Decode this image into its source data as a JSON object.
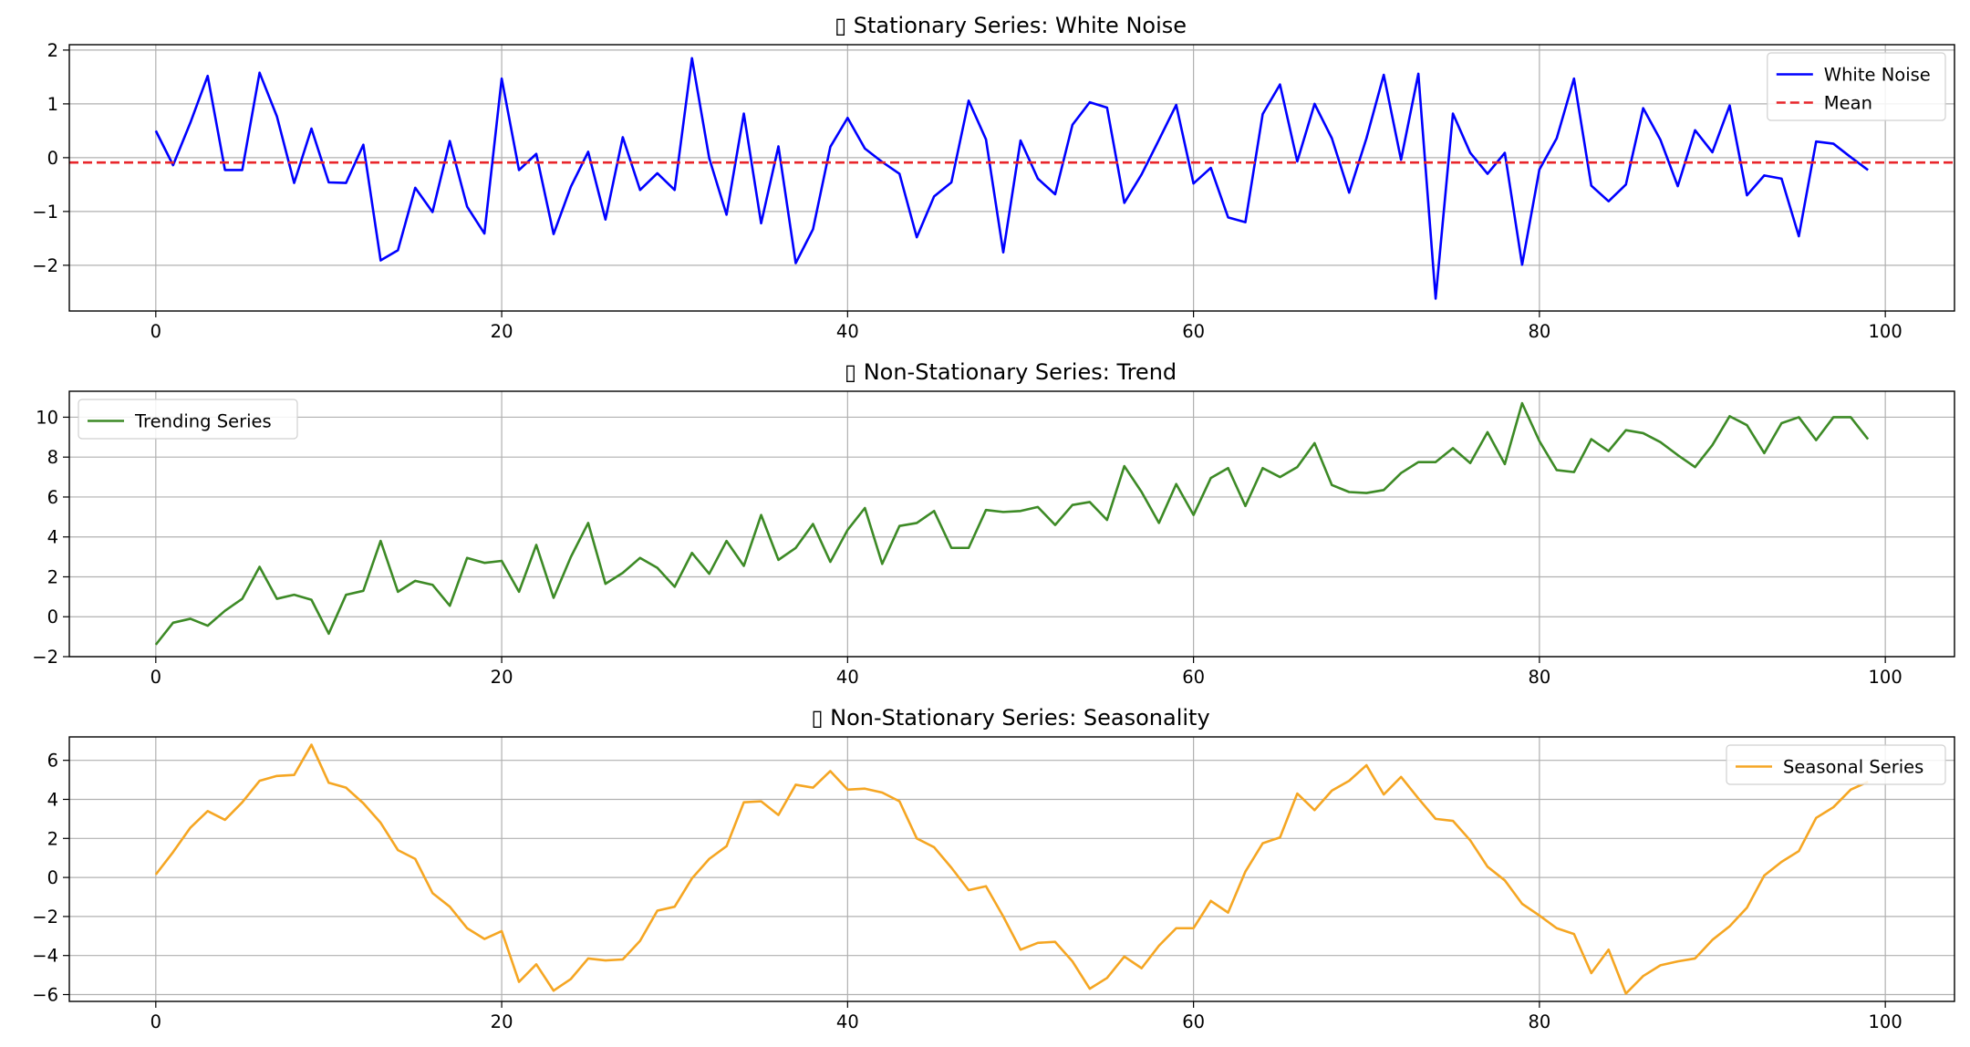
{
  "chart_data": [
    {
      "type": "line",
      "title": "▯ Stationary Series: White Noise",
      "xlabel": "",
      "ylabel": "",
      "xlim": [
        -5,
        104
      ],
      "ylim": [
        -2.85,
        2.1
      ],
      "xticks": [
        0,
        20,
        40,
        60,
        80,
        100
      ],
      "xtick_labels": [
        "0",
        "20",
        "40",
        "60",
        "80",
        "100"
      ],
      "yticks": [
        -2,
        -1,
        0,
        1,
        2
      ],
      "ytick_labels": [
        "−2",
        "−1",
        "0",
        "1",
        "2"
      ],
      "grid": true,
      "legend_position": "top-right",
      "series": [
        {
          "name": "White Noise",
          "color": "#0000ff",
          "style": "solid",
          "x": [
            0,
            1,
            2,
            3,
            4,
            5,
            6,
            7,
            8,
            9,
            10,
            11,
            12,
            13,
            14,
            15,
            16,
            17,
            18,
            19,
            20,
            21,
            22,
            23,
            24,
            25,
            26,
            27,
            28,
            29,
            30,
            31,
            32,
            33,
            34,
            35,
            36,
            37,
            38,
            39,
            40,
            41,
            42,
            43,
            44,
            45,
            46,
            47,
            48,
            49,
            50,
            51,
            52,
            53,
            54,
            55,
            56,
            57,
            58,
            59,
            60,
            61,
            62,
            63,
            64,
            65,
            66,
            67,
            68,
            69,
            70,
            71,
            72,
            73,
            74,
            75,
            76,
            77,
            78,
            79,
            80,
            81,
            82,
            83,
            84,
            85,
            86,
            87,
            88,
            89,
            90,
            91,
            92,
            93,
            94,
            95,
            96,
            97,
            98,
            99
          ],
          "y": [
            0.5,
            -0.14,
            0.65,
            1.52,
            -0.23,
            -0.23,
            1.58,
            0.77,
            -0.47,
            0.54,
            -0.46,
            -0.47,
            0.24,
            -1.91,
            -1.72,
            -0.56,
            -1.01,
            0.31,
            -0.91,
            -1.41,
            1.47,
            -0.23,
            0.07,
            -1.42,
            -0.54,
            0.11,
            -1.15,
            0.38,
            -0.6,
            -0.29,
            -0.6,
            1.85,
            -0.01,
            -1.06,
            0.82,
            -1.22,
            0.21,
            -1.96,
            -1.33,
            0.2,
            0.74,
            0.17,
            -0.08,
            -0.3,
            -1.48,
            -0.72,
            -0.46,
            1.06,
            0.34,
            -1.76,
            0.32,
            -0.39,
            -0.68,
            0.61,
            1.03,
            0.93,
            -0.84,
            -0.31,
            0.33,
            0.98,
            -0.48,
            -0.19,
            -1.11,
            -1.2,
            0.81,
            1.36,
            -0.07,
            1.0,
            0.36,
            -0.65,
            0.36,
            1.54,
            -0.04,
            1.56,
            -2.62,
            0.82,
            0.09,
            -0.3,
            0.09,
            -1.99,
            -0.22,
            0.36,
            1.47,
            -0.52,
            -0.81,
            -0.5,
            0.92,
            0.33,
            -0.53,
            0.51,
            0.1,
            0.97,
            -0.7,
            -0.33,
            -0.39,
            -1.46,
            0.3,
            0.26,
            0.01,
            -0.23
          ]
        },
        {
          "name": "Mean",
          "color": "#e8262b",
          "style": "dashed",
          "x": [
            -5,
            104
          ],
          "y": [
            -0.09,
            -0.09
          ]
        }
      ]
    },
    {
      "type": "line",
      "title": "▯ Non-Stationary Series: Trend",
      "xlabel": "",
      "ylabel": "",
      "xlim": [
        -5,
        104
      ],
      "ylim": [
        -2.0,
        11.3
      ],
      "xticks": [
        0,
        20,
        40,
        60,
        80,
        100
      ],
      "xtick_labels": [
        "0",
        "20",
        "40",
        "60",
        "80",
        "100"
      ],
      "yticks": [
        -2,
        0,
        2,
        4,
        6,
        8,
        10
      ],
      "ytick_labels": [
        "−2",
        "0",
        "2",
        "4",
        "6",
        "8",
        "10"
      ],
      "grid": true,
      "legend_position": "top-left",
      "series": [
        {
          "name": "Trending Series",
          "color": "#3d8a26",
          "style": "solid",
          "x": [
            0,
            1,
            2,
            3,
            4,
            5,
            6,
            7,
            8,
            9,
            10,
            11,
            12,
            13,
            14,
            15,
            16,
            17,
            18,
            19,
            20,
            21,
            22,
            23,
            24,
            25,
            26,
            27,
            28,
            29,
            30,
            31,
            32,
            33,
            34,
            35,
            36,
            37,
            38,
            39,
            40,
            41,
            42,
            43,
            44,
            45,
            46,
            47,
            48,
            49,
            50,
            51,
            52,
            53,
            54,
            55,
            56,
            57,
            58,
            59,
            60,
            61,
            62,
            63,
            64,
            65,
            66,
            67,
            68,
            69,
            70,
            71,
            72,
            73,
            74,
            75,
            76,
            77,
            78,
            79,
            80,
            81,
            82,
            83,
            84,
            85,
            86,
            87,
            88,
            89,
            90,
            91,
            92,
            93,
            94,
            95,
            96,
            97,
            98,
            99
          ],
          "y": [
            -1.4,
            -0.3,
            -0.1,
            -0.45,
            0.3,
            0.9,
            2.5,
            0.9,
            1.1,
            0.85,
            -0.85,
            1.1,
            1.3,
            3.8,
            1.25,
            1.8,
            1.6,
            0.55,
            2.95,
            2.7,
            2.8,
            1.25,
            3.6,
            0.95,
            3.0,
            4.7,
            1.65,
            2.2,
            2.95,
            2.45,
            1.5,
            3.2,
            2.15,
            3.8,
            2.55,
            5.1,
            2.85,
            3.45,
            4.65,
            2.75,
            4.35,
            5.45,
            2.65,
            4.55,
            4.7,
            5.3,
            3.45,
            3.45,
            5.35,
            5.25,
            5.3,
            5.5,
            4.6,
            5.6,
            5.75,
            4.85,
            7.55,
            6.25,
            4.7,
            6.65,
            5.1,
            6.95,
            7.45,
            5.55,
            7.45,
            7.0,
            7.5,
            8.7,
            6.6,
            6.25,
            6.2,
            6.35,
            7.2,
            7.75,
            7.75,
            8.45,
            7.7,
            9.25,
            7.65,
            10.7,
            8.8,
            7.35,
            7.25,
            8.9,
            8.3,
            9.35,
            9.2,
            8.75,
            8.1,
            7.5,
            8.6,
            10.05,
            9.6,
            8.2,
            9.7,
            10.0,
            8.85,
            10.0,
            10.0,
            8.9
          ]
        }
      ]
    },
    {
      "type": "line",
      "title": "▯ Non-Stationary Series: Seasonality",
      "xlabel": "",
      "ylabel": "",
      "xlim": [
        -5,
        104
      ],
      "ylim": [
        -6.35,
        7.2
      ],
      "xticks": [
        0,
        20,
        40,
        60,
        80,
        100
      ],
      "xtick_labels": [
        "0",
        "20",
        "40",
        "60",
        "80",
        "100"
      ],
      "yticks": [
        -6,
        -4,
        -2,
        0,
        2,
        4,
        6
      ],
      "ytick_labels": [
        "−6",
        "−4",
        "−2",
        "0",
        "2",
        "4",
        "6"
      ],
      "grid": true,
      "legend_position": "top-right",
      "series": [
        {
          "name": "Seasonal Series",
          "color": "#f5a623",
          "style": "solid",
          "x": [
            0,
            1,
            2,
            3,
            4,
            5,
            6,
            7,
            8,
            9,
            10,
            11,
            12,
            13,
            14,
            15,
            16,
            17,
            18,
            19,
            20,
            21,
            22,
            23,
            24,
            25,
            26,
            27,
            28,
            29,
            30,
            31,
            32,
            33,
            34,
            35,
            36,
            37,
            38,
            39,
            40,
            41,
            42,
            43,
            44,
            45,
            46,
            47,
            48,
            49,
            50,
            51,
            52,
            53,
            54,
            55,
            56,
            57,
            58,
            59,
            60,
            61,
            62,
            63,
            64,
            65,
            66,
            67,
            68,
            69,
            70,
            71,
            72,
            73,
            74,
            75,
            76,
            77,
            78,
            79,
            80,
            81,
            82,
            83,
            84,
            85,
            86,
            87,
            88,
            89,
            90,
            91,
            92,
            93,
            94,
            95,
            96,
            97,
            98,
            99
          ],
          "y": [
            0.15,
            1.3,
            2.55,
            3.4,
            2.95,
            3.85,
            4.95,
            5.2,
            5.25,
            6.8,
            4.85,
            4.6,
            3.8,
            2.8,
            1.4,
            0.95,
            -0.8,
            -1.5,
            -2.6,
            -3.15,
            -2.75,
            -5.35,
            -4.45,
            -5.8,
            -5.2,
            -4.15,
            -4.25,
            -4.2,
            -3.25,
            -1.7,
            -1.5,
            -0.05,
            0.95,
            1.6,
            3.85,
            3.9,
            3.2,
            4.75,
            4.6,
            5.45,
            4.5,
            4.55,
            4.35,
            3.9,
            2.0,
            1.55,
            0.5,
            -0.65,
            -0.45,
            -2.0,
            -3.7,
            -3.35,
            -3.3,
            -4.3,
            -5.7,
            -5.15,
            -4.05,
            -4.65,
            -3.5,
            -2.6,
            -2.6,
            -1.2,
            -1.8,
            0.3,
            1.75,
            2.05,
            4.3,
            3.45,
            4.45,
            4.95,
            5.75,
            4.25,
            5.15,
            4.05,
            3.0,
            2.9,
            1.9,
            0.55,
            -0.15,
            -1.35,
            -1.95,
            -2.6,
            -2.9,
            -4.9,
            -3.7,
            -5.95,
            -5.05,
            -4.5,
            -4.3,
            -4.15,
            -3.2,
            -2.5,
            -1.55,
            0.1,
            0.8,
            1.35,
            3.05,
            3.6,
            4.5,
            4.9
          ]
        }
      ]
    }
  ]
}
